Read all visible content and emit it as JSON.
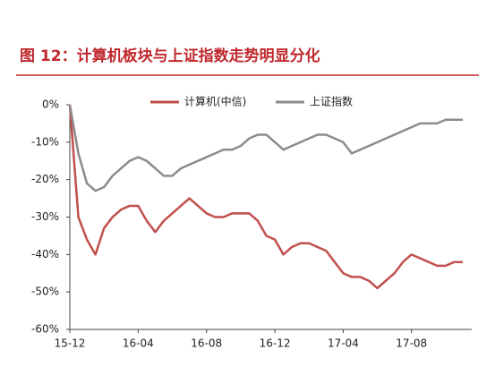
{
  "chart_data": {
    "type": "line",
    "title": "图 12：计算机板块与上证指数走势明显分化",
    "categories": [
      "15-12",
      null,
      null,
      null,
      null,
      null,
      null,
      null,
      "16-04",
      null,
      null,
      null,
      null,
      null,
      null,
      null,
      "16-08",
      null,
      null,
      null,
      null,
      null,
      null,
      null,
      "16-12",
      null,
      null,
      null,
      null,
      null,
      null,
      null,
      "17-04",
      null,
      null,
      null,
      null,
      null,
      null,
      null,
      "17-08",
      null,
      null,
      null,
      null,
      null,
      null
    ],
    "series": [
      {
        "name": "计算机(中信)",
        "color": "#c0504d",
        "values": [
          0,
          -30,
          -36,
          -40,
          -33,
          -30,
          -28,
          -27,
          -27,
          -31,
          -34,
          -31,
          -29,
          -27,
          -25,
          -27,
          -29,
          -30,
          -30,
          -29,
          -29,
          -29,
          -31,
          -35,
          -36,
          -40,
          -38,
          -37,
          -37,
          -38,
          -39,
          -42,
          -45,
          -46,
          -46,
          -47,
          -49,
          -47,
          -45,
          -42,
          -40,
          -41,
          -42,
          -43,
          -43,
          -42,
          -42
        ]
      },
      {
        "name": "上证指数",
        "color": "#8c8c8c",
        "values": [
          0,
          -13,
          -21,
          -23,
          -22,
          -19,
          -17,
          -15,
          -14,
          -15,
          -17,
          -19,
          -19,
          -17,
          -16,
          -15,
          -14,
          -13,
          -12,
          -12,
          -11,
          -9,
          -8,
          -8,
          -10,
          -12,
          -11,
          -10,
          -9,
          -8,
          -8,
          -9,
          -10,
          -13,
          -12,
          -11,
          -10,
          -9,
          -8,
          -7,
          -6,
          -5,
          -5,
          -5,
          -4,
          -4,
          -4
        ]
      }
    ],
    "ylim": [
      -60,
      0
    ],
    "yticks": [
      {
        "value": 0,
        "label": "0%"
      },
      {
        "value": -10,
        "label": "-10%"
      },
      {
        "value": -20,
        "label": "-20%"
      },
      {
        "value": -30,
        "label": "-30%"
      },
      {
        "value": -40,
        "label": "-40%"
      },
      {
        "value": -50,
        "label": "-50%"
      },
      {
        "value": -60,
        "label": "-60%"
      }
    ]
  }
}
